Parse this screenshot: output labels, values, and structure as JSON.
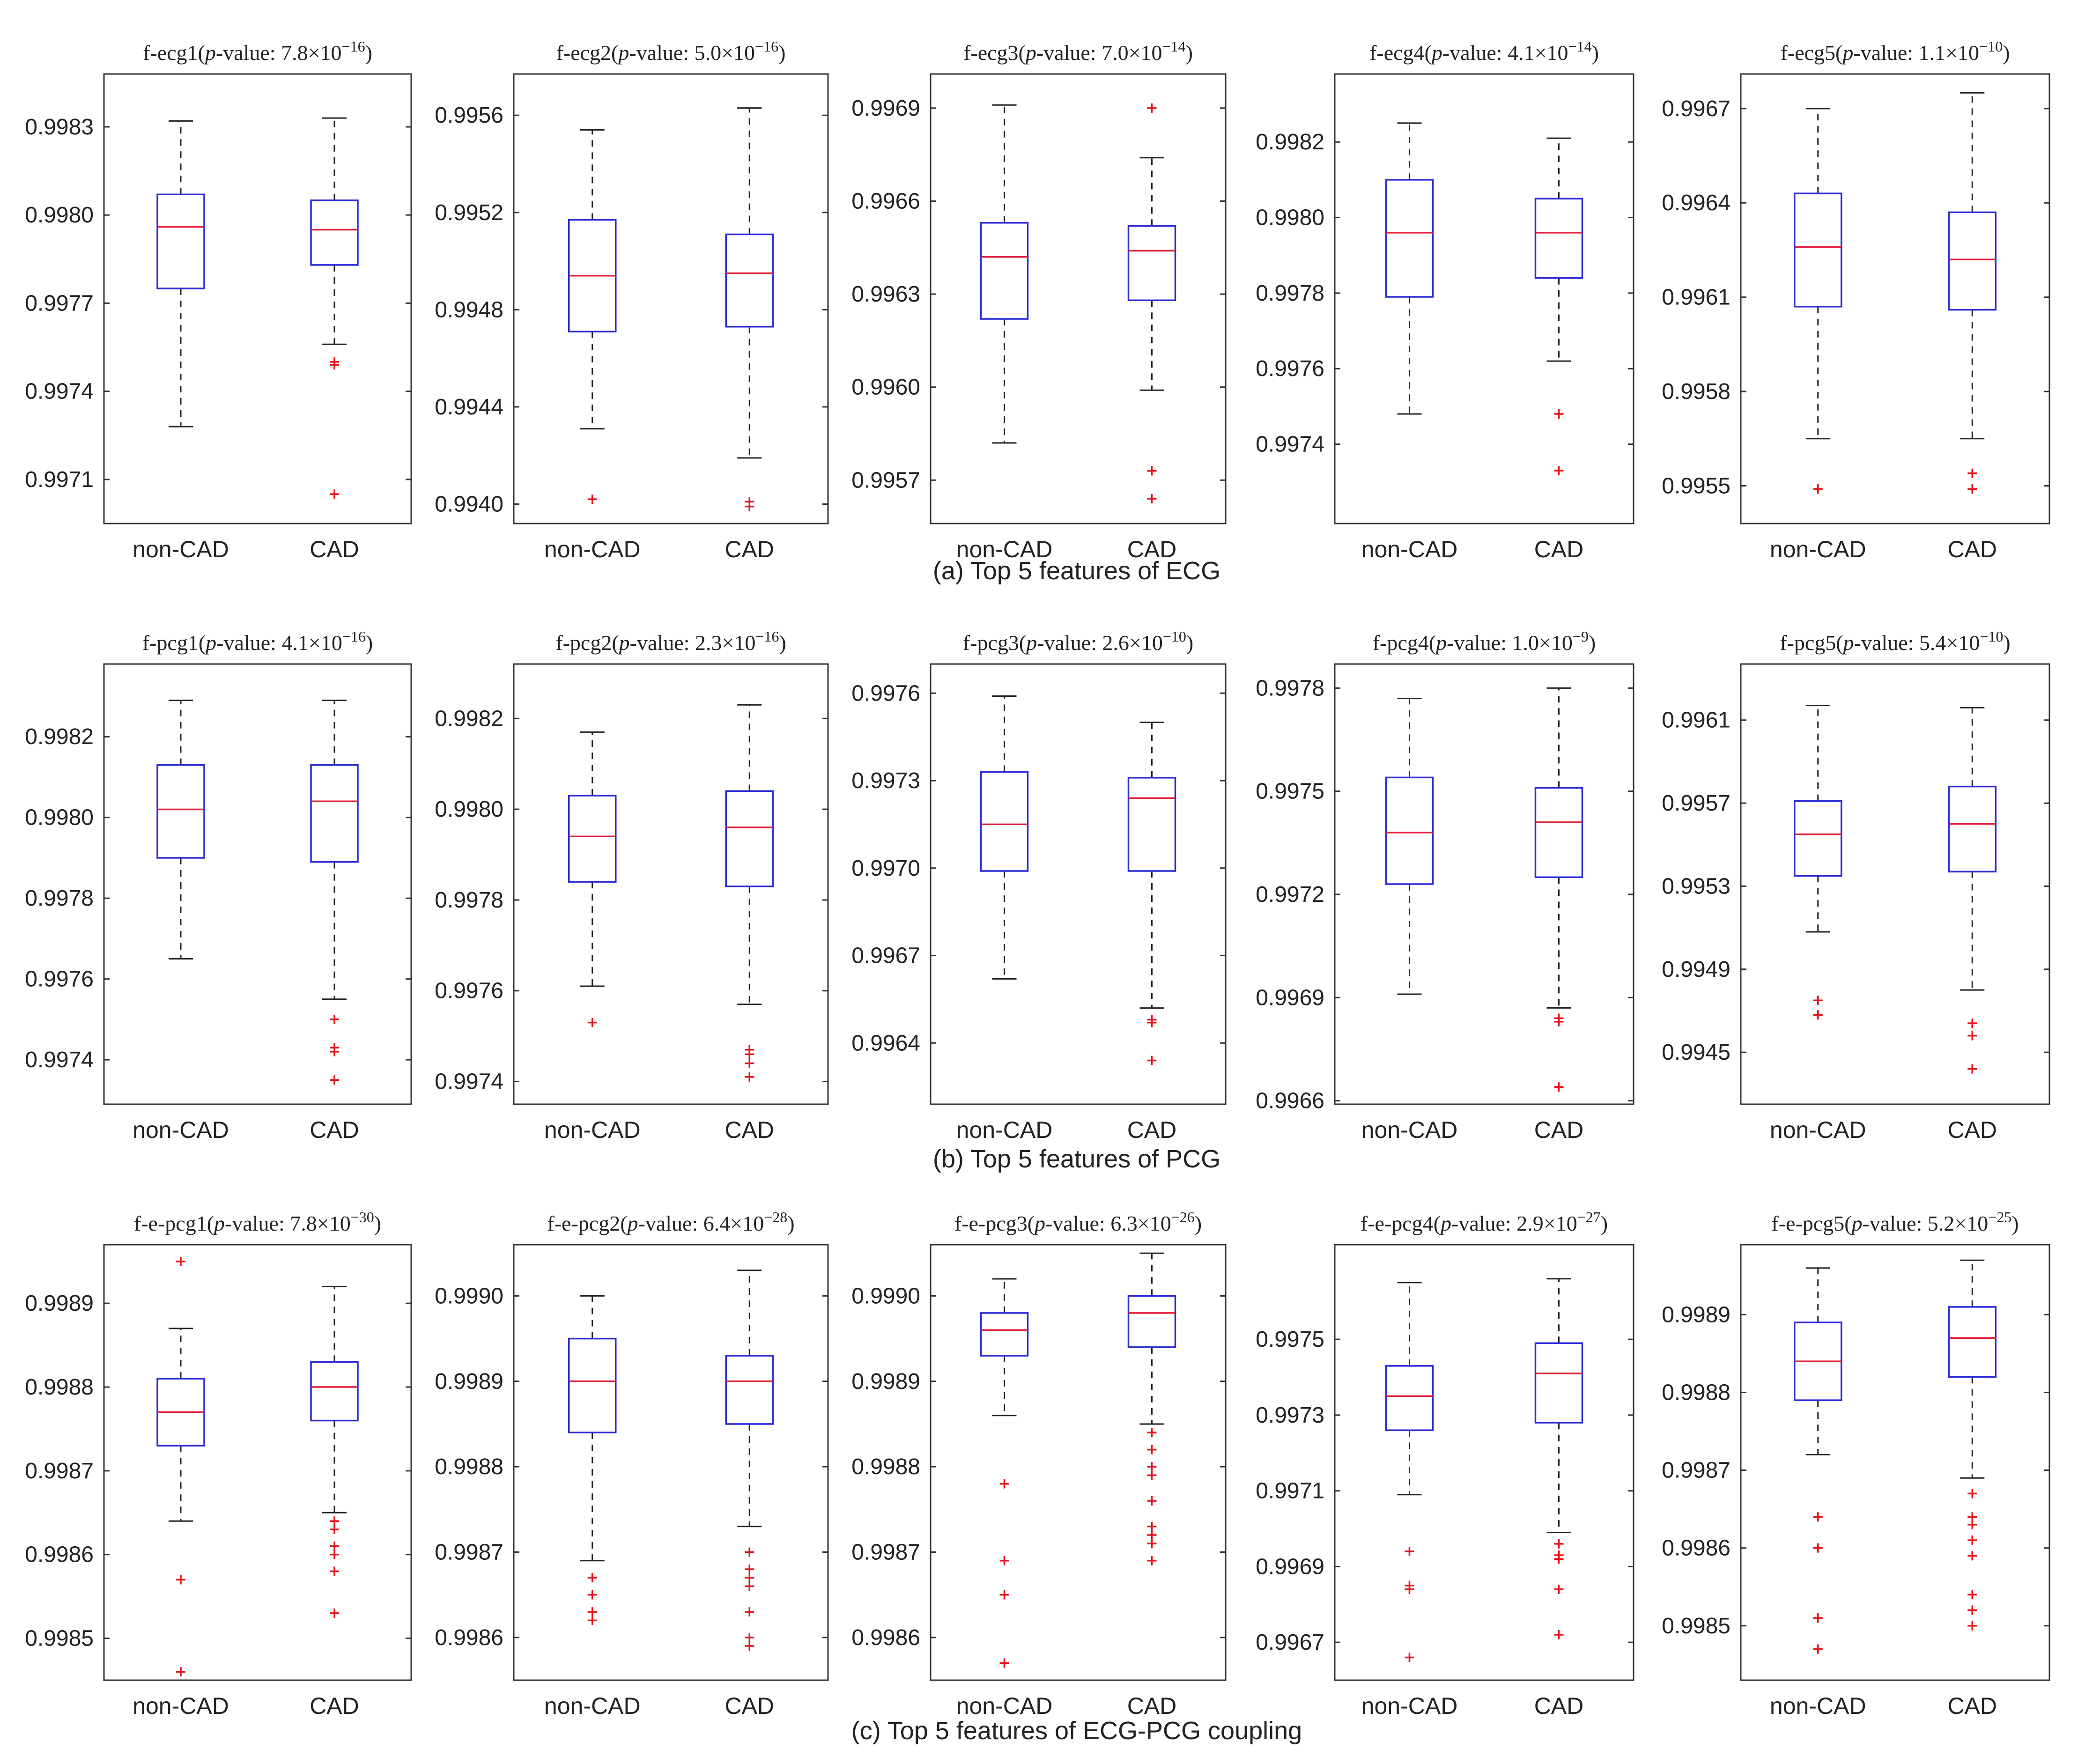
{
  "figure": {
    "category_labels": [
      "non-CAD",
      "CAD"
    ],
    "colors": {
      "box": "#2b2bd6",
      "median": "#e0203a",
      "whisker": "#222222",
      "outlier": "#e8101a",
      "frame": "#333333",
      "text": "#222222"
    }
  },
  "chart_data": [
    {
      "type": "box",
      "row": 0,
      "col": 0,
      "title": {
        "name": "f-ecg1",
        "p_label": "p",
        "value_label": "-value: ",
        "mantissa": "7.8",
        "times": "×10",
        "exponent": "−16",
        "close": ")"
      },
      "ylim": [
        0.99695,
        0.99848
      ],
      "yticks": [
        "0.9971",
        "0.9974",
        "0.9977",
        "0.9980",
        "0.9983"
      ],
      "categories": [
        "non-CAD",
        "CAD"
      ],
      "series": [
        {
          "name": "non-CAD",
          "whislo": 0.99728,
          "q1": 0.99775,
          "med": 0.99796,
          "q3": 0.99807,
          "whishi": 0.99832,
          "outliers": []
        },
        {
          "name": "CAD",
          "whislo": 0.99756,
          "q1": 0.99783,
          "med": 0.99795,
          "q3": 0.99805,
          "whishi": 0.99833,
          "outliers": [
            0.9975,
            0.99749,
            0.99705
          ]
        }
      ]
    },
    {
      "type": "box",
      "row": 0,
      "col": 1,
      "title": {
        "name": "f-ecg2",
        "p_label": "p",
        "value_label": "-value: ",
        "mantissa": "5.0",
        "times": "×10",
        "exponent": "−16",
        "close": ")"
      },
      "ylim": [
        0.99392,
        0.99577
      ],
      "yticks": [
        "0.9940",
        "0.9944",
        "0.9948",
        "0.9952",
        "0.9956"
      ],
      "categories": [
        "non-CAD",
        "CAD"
      ],
      "series": [
        {
          "name": "non-CAD",
          "whislo": 0.99431,
          "q1": 0.99471,
          "med": 0.99494,
          "q3": 0.99517,
          "whishi": 0.99554,
          "outliers": [
            0.99402
          ]
        },
        {
          "name": "CAD",
          "whislo": 0.99419,
          "q1": 0.99473,
          "med": 0.99495,
          "q3": 0.99511,
          "whishi": 0.99563,
          "outliers": [
            0.99401,
            0.99399
          ]
        }
      ]
    },
    {
      "type": "box",
      "row": 0,
      "col": 2,
      "title": {
        "name": "f-ecg3",
        "p_label": "p",
        "value_label": "-value: ",
        "mantissa": "7.0",
        "times": "×10",
        "exponent": "−14",
        "close": ")"
      },
      "ylim": [
        0.99556,
        0.99701
      ],
      "yticks": [
        "0.9957",
        "0.9960",
        "0.9963",
        "0.9966",
        "0.9969"
      ],
      "categories": [
        "non-CAD",
        "CAD"
      ],
      "series": [
        {
          "name": "non-CAD",
          "whislo": 0.99582,
          "q1": 0.99622,
          "med": 0.99642,
          "q3": 0.99653,
          "whishi": 0.99691,
          "outliers": []
        },
        {
          "name": "CAD",
          "whislo": 0.99599,
          "q1": 0.99628,
          "med": 0.99644,
          "q3": 0.99652,
          "whishi": 0.99674,
          "outliers": [
            0.9969,
            0.99573,
            0.99564
          ]
        }
      ]
    },
    {
      "type": "box",
      "row": 0,
      "col": 3,
      "title": {
        "name": "f-ecg4",
        "p_label": "p",
        "value_label": "-value: ",
        "mantissa": "4.1",
        "times": "×10",
        "exponent": "−14",
        "close": ")"
      },
      "ylim": [
        0.99719,
        0.99838
      ],
      "yticks": [
        "0.9974",
        "0.9976",
        "0.9978",
        "0.9980",
        "0.9982"
      ],
      "categories": [
        "non-CAD",
        "CAD"
      ],
      "series": [
        {
          "name": "non-CAD",
          "whislo": 0.99748,
          "q1": 0.99779,
          "med": 0.99796,
          "q3": 0.9981,
          "whishi": 0.99825,
          "outliers": []
        },
        {
          "name": "CAD",
          "whislo": 0.99762,
          "q1": 0.99784,
          "med": 0.99796,
          "q3": 0.99805,
          "whishi": 0.99821,
          "outliers": [
            0.99748,
            0.99733
          ]
        }
      ]
    },
    {
      "type": "box",
      "row": 0,
      "col": 4,
      "title": {
        "name": "f-ecg5",
        "p_label": "p",
        "value_label": "-value: ",
        "mantissa": "1.1",
        "times": "×10",
        "exponent": "−10",
        "close": ")"
      },
      "ylim": [
        0.99538,
        0.99681
      ],
      "yticks": [
        "0.9955",
        "0.9958",
        "0.9961",
        "0.9964",
        "0.9967"
      ],
      "categories": [
        "non-CAD",
        "CAD"
      ],
      "series": [
        {
          "name": "non-CAD",
          "whislo": 0.99565,
          "q1": 0.99607,
          "med": 0.99626,
          "q3": 0.99643,
          "whishi": 0.9967,
          "outliers": [
            0.99549
          ]
        },
        {
          "name": "CAD",
          "whislo": 0.99565,
          "q1": 0.99606,
          "med": 0.99622,
          "q3": 0.99637,
          "whishi": 0.99675,
          "outliers": [
            0.99554,
            0.99549
          ]
        }
      ]
    },
    {
      "type": "box",
      "row": 1,
      "col": 0,
      "title": {
        "name": "f-pcg1",
        "p_label": "p",
        "value_label": "-value: ",
        "mantissa": "4.1",
        "times": "×10",
        "exponent": "−16",
        "close": ")"
      },
      "ylim": [
        0.99729,
        0.99838
      ],
      "yticks": [
        "0.9974",
        "0.9976",
        "0.9978",
        "0.9980",
        "0.9982"
      ],
      "categories": [
        "non-CAD",
        "CAD"
      ],
      "series": [
        {
          "name": "non-CAD",
          "whislo": 0.99765,
          "q1": 0.9979,
          "med": 0.99802,
          "q3": 0.99813,
          "whishi": 0.99829,
          "outliers": []
        },
        {
          "name": "CAD",
          "whislo": 0.99755,
          "q1": 0.99789,
          "med": 0.99804,
          "q3": 0.99813,
          "whishi": 0.99829,
          "outliers": [
            0.9975,
            0.99743,
            0.99742,
            0.99735
          ]
        }
      ]
    },
    {
      "type": "box",
      "row": 1,
      "col": 1,
      "title": {
        "name": "f-pcg2",
        "p_label": "p",
        "value_label": "-value: ",
        "mantissa": "2.3",
        "times": "×10",
        "exponent": "−16",
        "close": ")"
      },
      "ylim": [
        0.99735,
        0.99832
      ],
      "yticks": [
        "0.9974",
        "0.9976",
        "0.9978",
        "0.9980",
        "0.9982"
      ],
      "categories": [
        "non-CAD",
        "CAD"
      ],
      "series": [
        {
          "name": "non-CAD",
          "whislo": 0.99761,
          "q1": 0.99784,
          "med": 0.99794,
          "q3": 0.99803,
          "whishi": 0.99817,
          "outliers": [
            0.99753
          ]
        },
        {
          "name": "CAD",
          "whislo": 0.99757,
          "q1": 0.99783,
          "med": 0.99796,
          "q3": 0.99804,
          "whishi": 0.99823,
          "outliers": [
            0.99747,
            0.99746,
            0.99744,
            0.99741
          ]
        }
      ]
    },
    {
      "type": "box",
      "row": 1,
      "col": 2,
      "title": {
        "name": "f-pcg3",
        "p_label": "p",
        "value_label": "-value: ",
        "mantissa": "2.6",
        "times": "×10",
        "exponent": "−10",
        "close": ")"
      },
      "ylim": [
        0.99619,
        0.9977
      ],
      "yticks": [
        "0.9964",
        "0.9967",
        "0.9970",
        "0.9973",
        "0.9976"
      ],
      "categories": [
        "non-CAD",
        "CAD"
      ],
      "series": [
        {
          "name": "non-CAD",
          "whislo": 0.99662,
          "q1": 0.99699,
          "med": 0.99715,
          "q3": 0.99733,
          "whishi": 0.99759,
          "outliers": []
        },
        {
          "name": "CAD",
          "whislo": 0.99652,
          "q1": 0.99699,
          "med": 0.99724,
          "q3": 0.99731,
          "whishi": 0.9975,
          "outliers": [
            0.99648,
            0.99647,
            0.99634
          ]
        }
      ]
    },
    {
      "type": "box",
      "row": 1,
      "col": 3,
      "title": {
        "name": "f-pcg4",
        "p_label": "p",
        "value_label": "-value: ",
        "mantissa": "1.0",
        "times": "×10",
        "exponent": "−9",
        "close": ")"
      },
      "ylim": [
        0.99659,
        0.99787
      ],
      "yticks": [
        "0.9966",
        "0.9969",
        "0.9972",
        "0.9975",
        "0.9978"
      ],
      "categories": [
        "non-CAD",
        "CAD"
      ],
      "series": [
        {
          "name": "non-CAD",
          "whislo": 0.99691,
          "q1": 0.99723,
          "med": 0.99738,
          "q3": 0.99754,
          "whishi": 0.99777,
          "outliers": []
        },
        {
          "name": "CAD",
          "whislo": 0.99687,
          "q1": 0.99725,
          "med": 0.99741,
          "q3": 0.99751,
          "whishi": 0.9978,
          "outliers": [
            0.99684,
            0.99683,
            0.99664
          ]
        }
      ]
    },
    {
      "type": "box",
      "row": 1,
      "col": 4,
      "title": {
        "name": "f-pcg5",
        "p_label": "p",
        "value_label": "-value: ",
        "mantissa": "5.4",
        "times": "×10",
        "exponent": "−10",
        "close": ")"
      },
      "ylim": [
        0.99425,
        0.99637
      ],
      "yticks": [
        "0.9945",
        "0.9949",
        "0.9953",
        "0.9957",
        "0.9961"
      ],
      "categories": [
        "non-CAD",
        "CAD"
      ],
      "series": [
        {
          "name": "non-CAD",
          "whislo": 0.99508,
          "q1": 0.99535,
          "med": 0.99555,
          "q3": 0.99571,
          "whishi": 0.99617,
          "outliers": [
            0.99475,
            0.99468
          ]
        },
        {
          "name": "CAD",
          "whislo": 0.9948,
          "q1": 0.99537,
          "med": 0.9956,
          "q3": 0.99578,
          "whishi": 0.99616,
          "outliers": [
            0.99464,
            0.99458,
            0.99442
          ]
        }
      ]
    },
    {
      "type": "box",
      "row": 2,
      "col": 0,
      "title": {
        "name": "f-e-pcg1",
        "p_label": "p",
        "value_label": "-value: ",
        "mantissa": "7.8",
        "times": "×10",
        "exponent": "−30",
        "close": ")"
      },
      "ylim": [
        0.99845,
        0.99897
      ],
      "yticks": [
        "0.9985",
        "0.9986",
        "0.9987",
        "0.9988",
        "0.9989"
      ],
      "categories": [
        "non-CAD",
        "CAD"
      ],
      "series": [
        {
          "name": "non-CAD",
          "whislo": 0.99864,
          "q1": 0.99873,
          "med": 0.99877,
          "q3": 0.99881,
          "whishi": 0.99887,
          "outliers": [
            0.99895,
            0.99857,
            0.99846
          ]
        },
        {
          "name": "CAD",
          "whislo": 0.99865,
          "q1": 0.99876,
          "med": 0.9988,
          "q3": 0.99883,
          "whishi": 0.99892,
          "outliers": [
            0.99864,
            0.99863,
            0.99861,
            0.9986,
            0.99858,
            0.99853
          ]
        }
      ]
    },
    {
      "type": "box",
      "row": 2,
      "col": 1,
      "title": {
        "name": "f-e-pcg2",
        "p_label": "p",
        "value_label": "-value: ",
        "mantissa": "6.4",
        "times": "×10",
        "exponent": "−28",
        "close": ")"
      },
      "ylim": [
        0.99855,
        0.99906
      ],
      "yticks": [
        "0.9986",
        "0.9987",
        "0.9988",
        "0.9989",
        "0.9990"
      ],
      "categories": [
        "non-CAD",
        "CAD"
      ],
      "series": [
        {
          "name": "non-CAD",
          "whislo": 0.99869,
          "q1": 0.99884,
          "med": 0.9989,
          "q3": 0.99895,
          "whishi": 0.999,
          "outliers": [
            0.99867,
            0.99865,
            0.99863,
            0.99862
          ]
        },
        {
          "name": "CAD",
          "whislo": 0.99873,
          "q1": 0.99885,
          "med": 0.9989,
          "q3": 0.99893,
          "whishi": 0.99903,
          "outliers": [
            0.9987,
            0.99868,
            0.99867,
            0.99866,
            0.99863,
            0.9986,
            0.99859
          ]
        }
      ]
    },
    {
      "type": "box",
      "row": 2,
      "col": 2,
      "title": {
        "name": "f-e-pcg3",
        "p_label": "p",
        "value_label": "-value: ",
        "mantissa": "6.3",
        "times": "×10",
        "exponent": "−26",
        "close": ")"
      },
      "ylim": [
        0.99855,
        0.99906
      ],
      "yticks": [
        "0.9986",
        "0.9987",
        "0.9988",
        "0.9989",
        "0.9990"
      ],
      "categories": [
        "non-CAD",
        "CAD"
      ],
      "series": [
        {
          "name": "non-CAD",
          "whislo": 0.99886,
          "q1": 0.99893,
          "med": 0.99896,
          "q3": 0.99898,
          "whishi": 0.99902,
          "outliers": [
            0.99878,
            0.99869,
            0.99865,
            0.99857
          ]
        },
        {
          "name": "CAD",
          "whislo": 0.99885,
          "q1": 0.99894,
          "med": 0.99898,
          "q3": 0.999,
          "whishi": 0.99905,
          "outliers": [
            0.99884,
            0.99882,
            0.9988,
            0.99879,
            0.99876,
            0.99873,
            0.99872,
            0.99871,
            0.99869
          ]
        }
      ]
    },
    {
      "type": "box",
      "row": 2,
      "col": 3,
      "title": {
        "name": "f-e-pcg4",
        "p_label": "p",
        "value_label": "-value: ",
        "mantissa": "2.9",
        "times": "×10",
        "exponent": "−27",
        "close": ")"
      },
      "ylim": [
        0.9966,
        0.99775
      ],
      "yticks": [
        "0.9967",
        "0.9969",
        "0.9971",
        "0.9973",
        "0.9975"
      ],
      "categories": [
        "non-CAD",
        "CAD"
      ],
      "series": [
        {
          "name": "non-CAD",
          "whislo": 0.99709,
          "q1": 0.99726,
          "med": 0.99735,
          "q3": 0.99743,
          "whishi": 0.99765,
          "outliers": [
            0.99694,
            0.99685,
            0.99684,
            0.99666
          ]
        },
        {
          "name": "CAD",
          "whislo": 0.99699,
          "q1": 0.99728,
          "med": 0.99741,
          "q3": 0.99749,
          "whishi": 0.99766,
          "outliers": [
            0.99696,
            0.99693,
            0.99692,
            0.99684,
            0.99672
          ]
        }
      ]
    },
    {
      "type": "box",
      "row": 2,
      "col": 4,
      "title": {
        "name": "f-e-pcg5",
        "p_label": "p",
        "value_label": "-value: ",
        "mantissa": "5.2",
        "times": "×10",
        "exponent": "−25",
        "close": ")"
      },
      "ylim": [
        0.99843,
        0.99899
      ],
      "yticks": [
        "0.9985",
        "0.9986",
        "0.9987",
        "0.9988",
        "0.9989"
      ],
      "categories": [
        "non-CAD",
        "CAD"
      ],
      "series": [
        {
          "name": "non-CAD",
          "whislo": 0.99872,
          "q1": 0.99879,
          "med": 0.99884,
          "q3": 0.99889,
          "whishi": 0.99896,
          "outliers": [
            0.99864,
            0.9986,
            0.99851,
            0.99847
          ]
        },
        {
          "name": "CAD",
          "whislo": 0.99869,
          "q1": 0.99882,
          "med": 0.99887,
          "q3": 0.99891,
          "whishi": 0.99897,
          "outliers": [
            0.99867,
            0.99864,
            0.99863,
            0.99861,
            0.99859,
            0.99854,
            0.99852,
            0.9985
          ]
        }
      ]
    }
  ],
  "captions": [
    "(a) Top 5 features of ECG",
    "(b) Top 5 features of PCG",
    "(c) Top 5 features of ECG-PCG coupling"
  ]
}
